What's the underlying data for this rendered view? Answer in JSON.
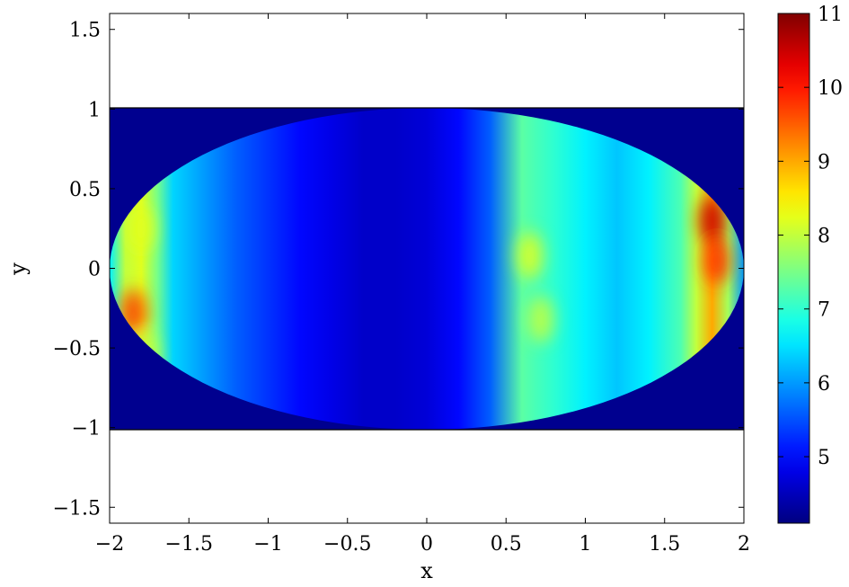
{
  "chart_data": {
    "type": "heatmap",
    "title": "",
    "xlabel": "x",
    "ylabel": "y",
    "xlim": [
      -2,
      2
    ],
    "ylim": [
      -1.6,
      1.6
    ],
    "x_ticks": [
      -2,
      -1.5,
      -1,
      -0.5,
      0,
      0.5,
      1,
      1.5,
      2
    ],
    "x_tick_labels": [
      "−2",
      "−1.5",
      "−1",
      "−0.5",
      "0",
      "0.5",
      "1",
      "1.5",
      "2"
    ],
    "y_ticks": [
      -1.5,
      -1,
      -0.5,
      0,
      0.5,
      1,
      1.5
    ],
    "y_tick_labels": [
      "−1.5",
      "−1",
      "−0.5",
      "0",
      "0.5",
      "1",
      "1.5"
    ],
    "field_domain": "ellipse x^2/4 + y^2 = 1 inside rectangle [-2,2] x [-1,1]",
    "colormap": "jet",
    "colorbar": {
      "min": 4.1,
      "max": 11,
      "ticks": [
        5,
        6,
        7,
        8,
        9,
        10,
        11
      ],
      "tick_labels": [
        "5",
        "6",
        "7",
        "8",
        "9",
        "10",
        "11"
      ]
    },
    "grid": false,
    "estimated_field_profile": {
      "x": [
        -2.0,
        -1.9,
        -1.8,
        -1.7,
        -1.6,
        -1.4,
        -1.2,
        -1.0,
        -0.8,
        -0.6,
        -0.4,
        -0.2,
        0.0,
        0.2,
        0.4,
        0.6,
        0.8,
        1.0,
        1.2,
        1.4,
        1.6,
        1.7,
        1.8,
        1.9,
        2.0
      ],
      "values": [
        6.6,
        8.0,
        8.2,
        7.5,
        6.4,
        6.0,
        5.6,
        5.3,
        5.0,
        4.8,
        4.6,
        4.6,
        4.7,
        5.0,
        5.6,
        7.3,
        7.0,
        6.6,
        6.3,
        6.6,
        7.2,
        8.0,
        9.0,
        7.8,
        6.0
      ]
    },
    "hot_spots": [
      {
        "x": 0.65,
        "y": 0.08,
        "value": 8.2
      },
      {
        "x": 0.72,
        "y": -0.32,
        "value": 8.0
      },
      {
        "x": 1.8,
        "y": 0.3,
        "value": 10.5
      },
      {
        "x": 1.83,
        "y": 0.05,
        "value": 9.8
      },
      {
        "x": -1.85,
        "y": -0.28,
        "value": 9.7
      },
      {
        "x": -1.8,
        "y": 0.25,
        "value": 8.2
      },
      {
        "x": -1.78,
        "y": -0.55,
        "value": 8.0
      }
    ],
    "outside_ellipse_value": 4.1
  }
}
